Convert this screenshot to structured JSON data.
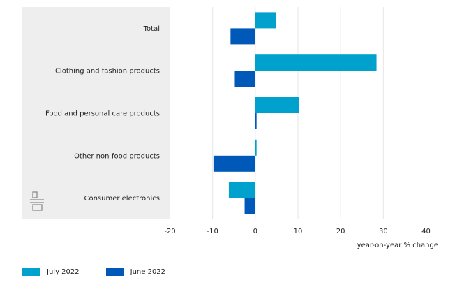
{
  "chart_data": {
    "type": "bar",
    "orientation": "horizontal",
    "categories": [
      "Total",
      "Clothing and fashion products",
      "Food and personal care products",
      "Other non-food products",
      "Consumer electronics"
    ],
    "series": [
      {
        "name": "July 2022",
        "color": "#00a1cd",
        "values": [
          4.8,
          28.4,
          10.2,
          0.3,
          -6.2
        ]
      },
      {
        "name": "June 2022",
        "color": "#0058b8",
        "values": [
          -5.8,
          -4.8,
          0.3,
          -9.8,
          -2.5
        ]
      }
    ],
    "xlabel": "year-on-year % change",
    "xlim": [
      -20,
      40
    ],
    "xticks": [
      -20,
      -10,
      0,
      10,
      20,
      30,
      40
    ],
    "grid": true,
    "legend_position": "bottom-left"
  },
  "colors": {
    "label_panel": "#eeeeee",
    "gridline": "#e6e6e6",
    "axis_line": "#555555"
  },
  "logo": {
    "icon": "cbs-logo-icon"
  }
}
